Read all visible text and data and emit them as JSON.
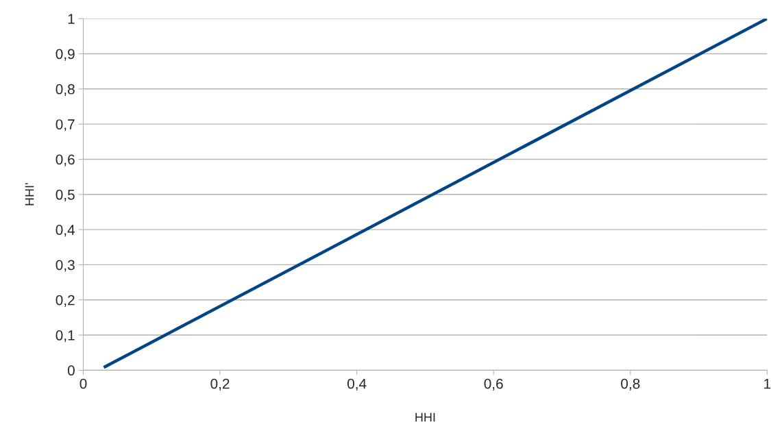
{
  "chart_data": {
    "type": "line",
    "xlabel": "HHI",
    "ylabel": "HHI'",
    "x": [
      0.03,
      1
    ],
    "series": [
      {
        "color": "#004586",
        "values": [
          0.008,
          1
        ]
      }
    ],
    "xlim": [
      0,
      1
    ],
    "ylim": [
      0,
      1
    ],
    "xticks": [
      0,
      {
        "value": 0.2,
        "label": "0,2"
      },
      {
        "value": 0.4,
        "label": "0,4"
      },
      {
        "value": 0.6,
        "label": "0,6"
      },
      {
        "value": 0.8,
        "label": "0,8"
      },
      1
    ],
    "yticks": [
      0,
      {
        "value": 0.1,
        "label": "0,1"
      },
      {
        "value": 0.2,
        "label": "0,2"
      },
      {
        "value": 0.3,
        "label": "0,3"
      },
      {
        "value": 0.4,
        "label": "0,4"
      },
      {
        "value": 0.5,
        "label": "0,5"
      },
      {
        "value": 0.6,
        "label": "0,6"
      },
      {
        "value": 0.7,
        "label": "0,7"
      },
      {
        "value": 0.8,
        "label": "0,8"
      },
      {
        "value": 0.9,
        "label": "0,9"
      },
      1
    ],
    "grid": "y",
    "legend": false
  }
}
